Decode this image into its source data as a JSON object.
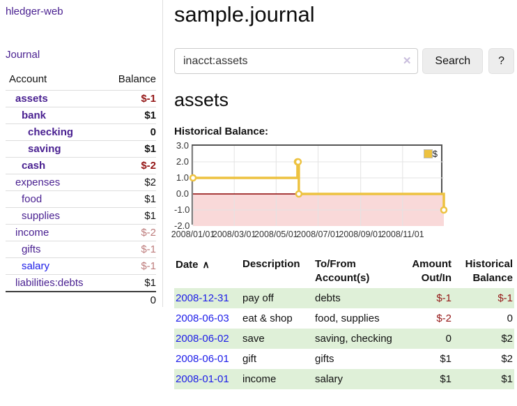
{
  "app": {
    "brand": "hledger-web",
    "nav_journal": "Journal"
  },
  "colors": {
    "accent_purple": "#4a2191",
    "link_blue": "#1c1ce8",
    "negative_strong": "#941616",
    "negative_soft": "#bd7b7b",
    "row_stripe_green": "#dff0d8",
    "chart_series_yellow": "#edc240",
    "chart_negative_fill": "#f9d9d9",
    "chart_zero_line": "#8b0000"
  },
  "sidebar": {
    "headers": {
      "account": "Account",
      "balance": "Balance"
    },
    "accounts": [
      {
        "name": "assets",
        "balance": "$-1",
        "depth": 1
      },
      {
        "name": "bank",
        "balance": "$1",
        "depth": 2
      },
      {
        "name": "checking",
        "balance": "0",
        "depth": 3
      },
      {
        "name": "saving",
        "balance": "$1",
        "depth": 3
      },
      {
        "name": "cash",
        "balance": "$-2",
        "depth": 2
      },
      {
        "name": "expenses",
        "balance": "$2",
        "depth": 1
      },
      {
        "name": "food",
        "balance": "$1",
        "depth": 2
      },
      {
        "name": "supplies",
        "balance": "$1",
        "depth": 2
      },
      {
        "name": "income",
        "balance": "$-2",
        "depth": 1
      },
      {
        "name": "gifts",
        "balance": "$-1",
        "depth": 2
      },
      {
        "name": "salary",
        "balance": "$-1",
        "depth": 2
      },
      {
        "name": "liabilities:debts",
        "balance": "$1",
        "depth": 1
      }
    ],
    "total": "0"
  },
  "main": {
    "title": "sample.journal",
    "search": {
      "value": "inacct:assets",
      "clear_glyph": "✕",
      "button_label": "Search",
      "help_label": "?"
    },
    "account_heading": "assets",
    "chart_label": "Historical Balance:"
  },
  "chart_data": {
    "type": "line",
    "style": "step",
    "title": "Historical Balance:",
    "xlabel": "",
    "ylabel": "",
    "series": [
      {
        "name": "$",
        "color": "#edc240",
        "points": [
          [
            "2008/01/01",
            1
          ],
          [
            "2008/06/01",
            2
          ],
          [
            "2008/06/02",
            2
          ],
          [
            "2008/06/03",
            0
          ],
          [
            "2008/12/31",
            -1
          ]
        ]
      }
    ],
    "x_ticks": [
      "2008/01/01",
      "2008/03/01",
      "2008/05/01",
      "2008/07/01",
      "2008/09/01",
      "2008/11/01"
    ],
    "y_ticks": [
      3.0,
      2.0,
      1.0,
      0.0,
      -1.0,
      -2.0
    ],
    "xlim": [
      "2008/01/01",
      "2008/12/31"
    ],
    "ylim": [
      -2,
      3
    ],
    "grid": true,
    "legend_position": "top-right",
    "negative_region_color": "#f9d9d9",
    "zero_line_color": "#8b0000"
  },
  "register": {
    "columns": [
      "Date",
      "Description",
      "To/From Account(s)",
      "Amount Out/In",
      "Historical Balance"
    ],
    "sort_icon_glyph": "∧",
    "rows": [
      {
        "date": "2008-12-31",
        "description": "pay off",
        "accounts": "debts",
        "amount": "$-1",
        "balance": "$-1"
      },
      {
        "date": "2008-06-03",
        "description": "eat & shop",
        "accounts": "food, supplies",
        "amount": "$-2",
        "balance": "0"
      },
      {
        "date": "2008-06-02",
        "description": "save",
        "accounts": "saving, checking",
        "amount": "0",
        "balance": "$2"
      },
      {
        "date": "2008-06-01",
        "description": "gift",
        "accounts": "gifts",
        "amount": "$1",
        "balance": "$2"
      },
      {
        "date": "2008-01-01",
        "description": "income",
        "accounts": "salary",
        "amount": "$1",
        "balance": "$1"
      }
    ]
  }
}
